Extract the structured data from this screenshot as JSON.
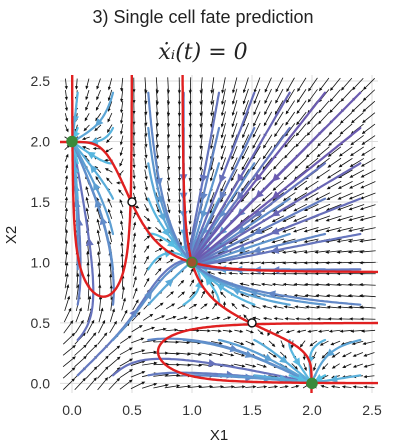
{
  "chart_data": {
    "type": "scatter",
    "title": "3) Single cell fate prediction",
    "subtitle": "ẋᵢ(t) = 0",
    "xlabel": "X1",
    "ylabel": "X2",
    "xlim": [
      -0.1,
      2.55
    ],
    "ylim": [
      -0.08,
      2.55
    ],
    "xticks": [
      "0.0",
      "0.5",
      "1.0",
      "1.5",
      "2.0",
      "2.5"
    ],
    "yticks": [
      "0.0",
      "0.5",
      "1.0",
      "1.5",
      "2.0",
      "2.5"
    ],
    "grid": true,
    "stable_points": [
      [
        0,
        2
      ],
      [
        1,
        1
      ],
      [
        2,
        0
      ]
    ],
    "unstable_points": [
      [
        0.5,
        1.5
      ],
      [
        1.5,
        0.5
      ]
    ],
    "colors": {
      "nullcline": "#e02020",
      "stable": "#3a8a3a",
      "stable_center": "#a0522d",
      "streamline_fast": "#6b5bb0",
      "streamline_slow": "#55c8e8",
      "arrows": "#111111",
      "grid": "#dddddd"
    }
  }
}
